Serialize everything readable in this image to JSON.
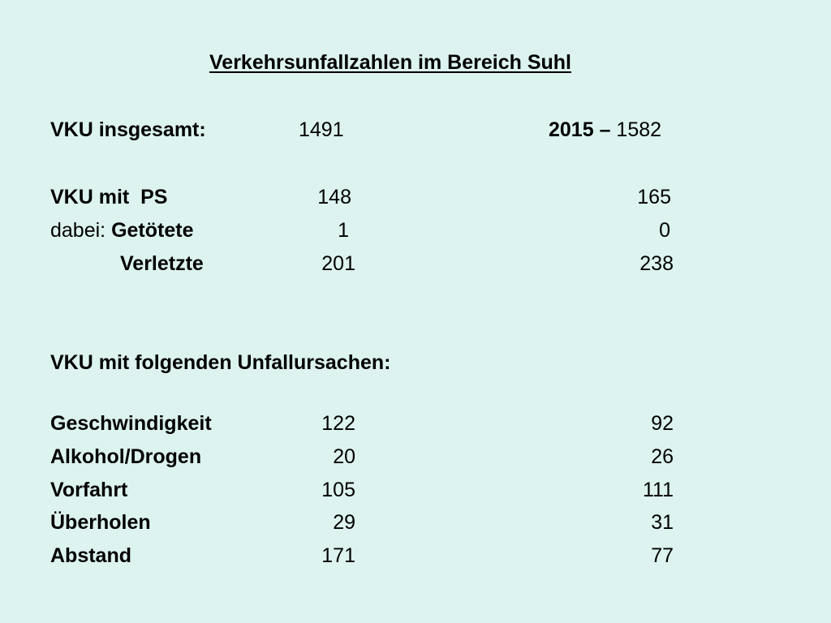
{
  "title": "Verkehrsunfallzahlen im Bereich Suhl",
  "total": {
    "label": "VKU insgesamt:",
    "value_a": "1491",
    "year_b": "2015",
    "dash": " – ",
    "value_b": "1582"
  },
  "ps": {
    "label": "VKU mit  PS",
    "value_a": "148",
    "value_b": "165"
  },
  "getoetete": {
    "prefix": "dabei: ",
    "label": "Getötete",
    "value_a": "1",
    "value_b": "0"
  },
  "verletzte": {
    "label": "Verletzte",
    "value_a": "201",
    "value_b": "238"
  },
  "causes_heading": "VKU mit folgenden Unfallursachen:",
  "causes": [
    {
      "label": "Geschwindigkeit",
      "value_a": "122",
      "value_b": "92"
    },
    {
      "label": "Alkohol/Drogen",
      "value_a": "20",
      "value_b": "26"
    },
    {
      "label": "Vorfahrt",
      "value_a": "105",
      "value_b": "111"
    },
    {
      "label": "Überholen",
      "value_a": "29",
      "value_b": "31"
    },
    {
      "label": "Abstand",
      "value_a": "171",
      "value_b": "77"
    }
  ]
}
